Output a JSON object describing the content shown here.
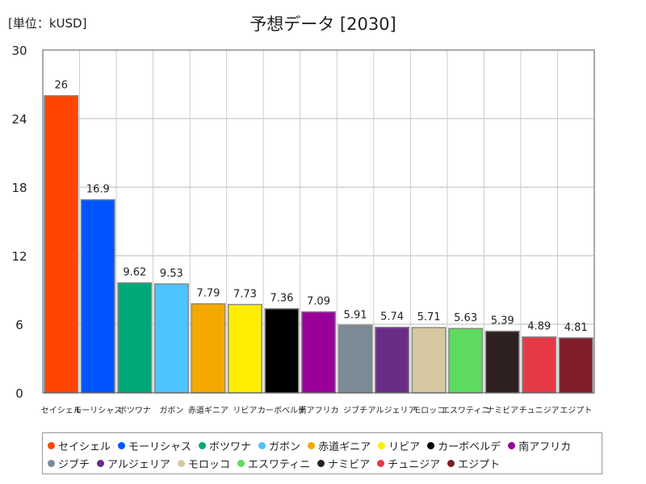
{
  "unit": "[単位：kUSD]",
  "chart_data": {
    "type": "bar",
    "title": "予想データ [2030]",
    "xlabel": "",
    "ylabel": "",
    "ylim": [
      0,
      30
    ],
    "yticks": [
      0,
      6,
      12,
      18,
      24,
      30
    ],
    "grid": true,
    "legend_position": "bottom",
    "categories": [
      "セイシェル",
      "モーリシャス",
      "ボツワナ",
      "ガボン",
      "赤道ギニア",
      "リビア",
      "カーボベルデ",
      "南アフリカ",
      "ジブチ",
      "アルジェリア",
      "モロッコ",
      "エスワティニ",
      "ナミビア",
      "チュニジア",
      "エジプト"
    ],
    "values": [
      26,
      16.9,
      9.62,
      9.53,
      7.79,
      7.73,
      7.36,
      7.09,
      5.91,
      5.74,
      5.71,
      5.63,
      5.39,
      4.89,
      4.81
    ],
    "value_labels": [
      "26",
      "16.9",
      "9.62",
      "9.53",
      "7.79",
      "7.73",
      "7.36",
      "7.09",
      "5.91",
      "5.74",
      "5.71",
      "5.63",
      "5.39",
      "4.89",
      "4.81"
    ],
    "colors": [
      "#ff4500",
      "#0055ff",
      "#00a878",
      "#4dc3ff",
      "#f5a800",
      "#ffee00",
      "#000000",
      "#990099",
      "#7a8a96",
      "#6b2c86",
      "#d6c8a0",
      "#5edb5e",
      "#2e2020",
      "#e63946",
      "#7f1d2a"
    ]
  }
}
